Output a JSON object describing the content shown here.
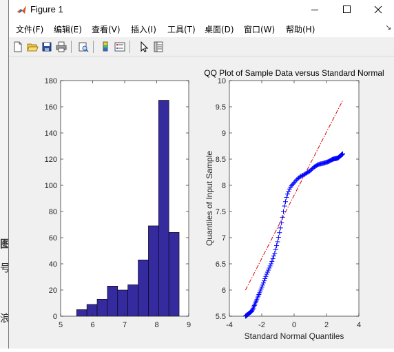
{
  "window": {
    "title": "Figure 1",
    "controls": {
      "minimize": "minimize",
      "maximize": "maximize",
      "close": "close"
    }
  },
  "menu": {
    "items": [
      {
        "label": "文件(F)"
      },
      {
        "label": "编辑(E)"
      },
      {
        "label": "查看(V)"
      },
      {
        "label": "插入(I)"
      },
      {
        "label": "工具(T)"
      },
      {
        "label": "桌面(D)"
      },
      {
        "label": "窗口(W)"
      },
      {
        "label": "帮助(H)"
      }
    ],
    "overflow": "↘"
  },
  "toolbar": {
    "icons": [
      "new-figure-icon",
      "open-file-icon",
      "save-icon",
      "print-icon",
      "print-preview-icon",
      "colorbar-icon",
      "legend-icon",
      "pointer-icon",
      "property-inspector-icon"
    ]
  },
  "background_fragments": [
    "图",
    "号",
    "浪"
  ],
  "chart_data": [
    {
      "type": "bar",
      "subtype": "histogram",
      "title": "",
      "xlabel": "",
      "ylabel": "",
      "xlim": [
        5,
        9
      ],
      "ylim": [
        0,
        180
      ],
      "xticks": [
        "5",
        "6",
        "7",
        "8",
        "9"
      ],
      "yticks": [
        "0",
        "20",
        "40",
        "60",
        "80",
        "100",
        "120",
        "140",
        "160",
        "180"
      ],
      "bins": [
        {
          "x0": 5.5,
          "x1": 5.82,
          "value": 5
        },
        {
          "x0": 5.82,
          "x1": 6.14,
          "value": 9
        },
        {
          "x0": 6.14,
          "x1": 6.46,
          "value": 13
        },
        {
          "x0": 6.46,
          "x1": 6.78,
          "value": 23
        },
        {
          "x0": 6.78,
          "x1": 7.1,
          "value": 20
        },
        {
          "x0": 7.1,
          "x1": 7.42,
          "value": 24
        },
        {
          "x0": 7.42,
          "x1": 7.74,
          "value": 43
        },
        {
          "x0": 7.74,
          "x1": 8.06,
          "value": 69
        },
        {
          "x0": 8.06,
          "x1": 8.38,
          "value": 165
        },
        {
          "x0": 8.38,
          "x1": 8.7,
          "value": 64
        }
      ],
      "bar_color": "#352a9e",
      "grid": false
    },
    {
      "type": "scatter",
      "subtype": "qqplot",
      "title": "QQ Plot of Sample Data versus Standard Normal",
      "xlabel": "Standard Normal Quantiles",
      "ylabel": "Quantiles of Input Sample",
      "xlim": [
        -4,
        4
      ],
      "ylim": [
        5.5,
        10
      ],
      "xticks": [
        "-4",
        "-2",
        "0",
        "2",
        "4"
      ],
      "yticks": [
        "5.5",
        "6",
        "6.5",
        "7",
        "7.5",
        "8",
        "8.5",
        "9",
        "9.5",
        "10"
      ],
      "marker_color": "#0000ff",
      "reference_line": {
        "color": "#dd0000",
        "style": "dash-dot",
        "x": [
          -3,
          3
        ],
        "y": [
          6.0,
          9.62
        ]
      },
      "quantile_curve": {
        "x": [
          -3.0,
          -2.6,
          -2.3,
          -2.0,
          -1.7,
          -1.4,
          -1.2,
          -1.0,
          -0.8,
          -0.6,
          -0.45,
          -0.3,
          -0.15,
          0.0,
          0.2,
          0.4,
          0.6,
          0.8,
          1.0,
          1.2,
          1.5,
          1.8,
          2.1,
          2.4,
          2.7,
          3.0
        ],
        "y": [
          5.5,
          5.6,
          5.82,
          6.05,
          6.3,
          6.52,
          6.7,
          6.95,
          7.25,
          7.6,
          7.8,
          7.92,
          8.0,
          8.05,
          8.12,
          8.17,
          8.2,
          8.24,
          8.28,
          8.34,
          8.4,
          8.42,
          8.45,
          8.5,
          8.52,
          8.6
        ]
      },
      "grid": false
    }
  ]
}
